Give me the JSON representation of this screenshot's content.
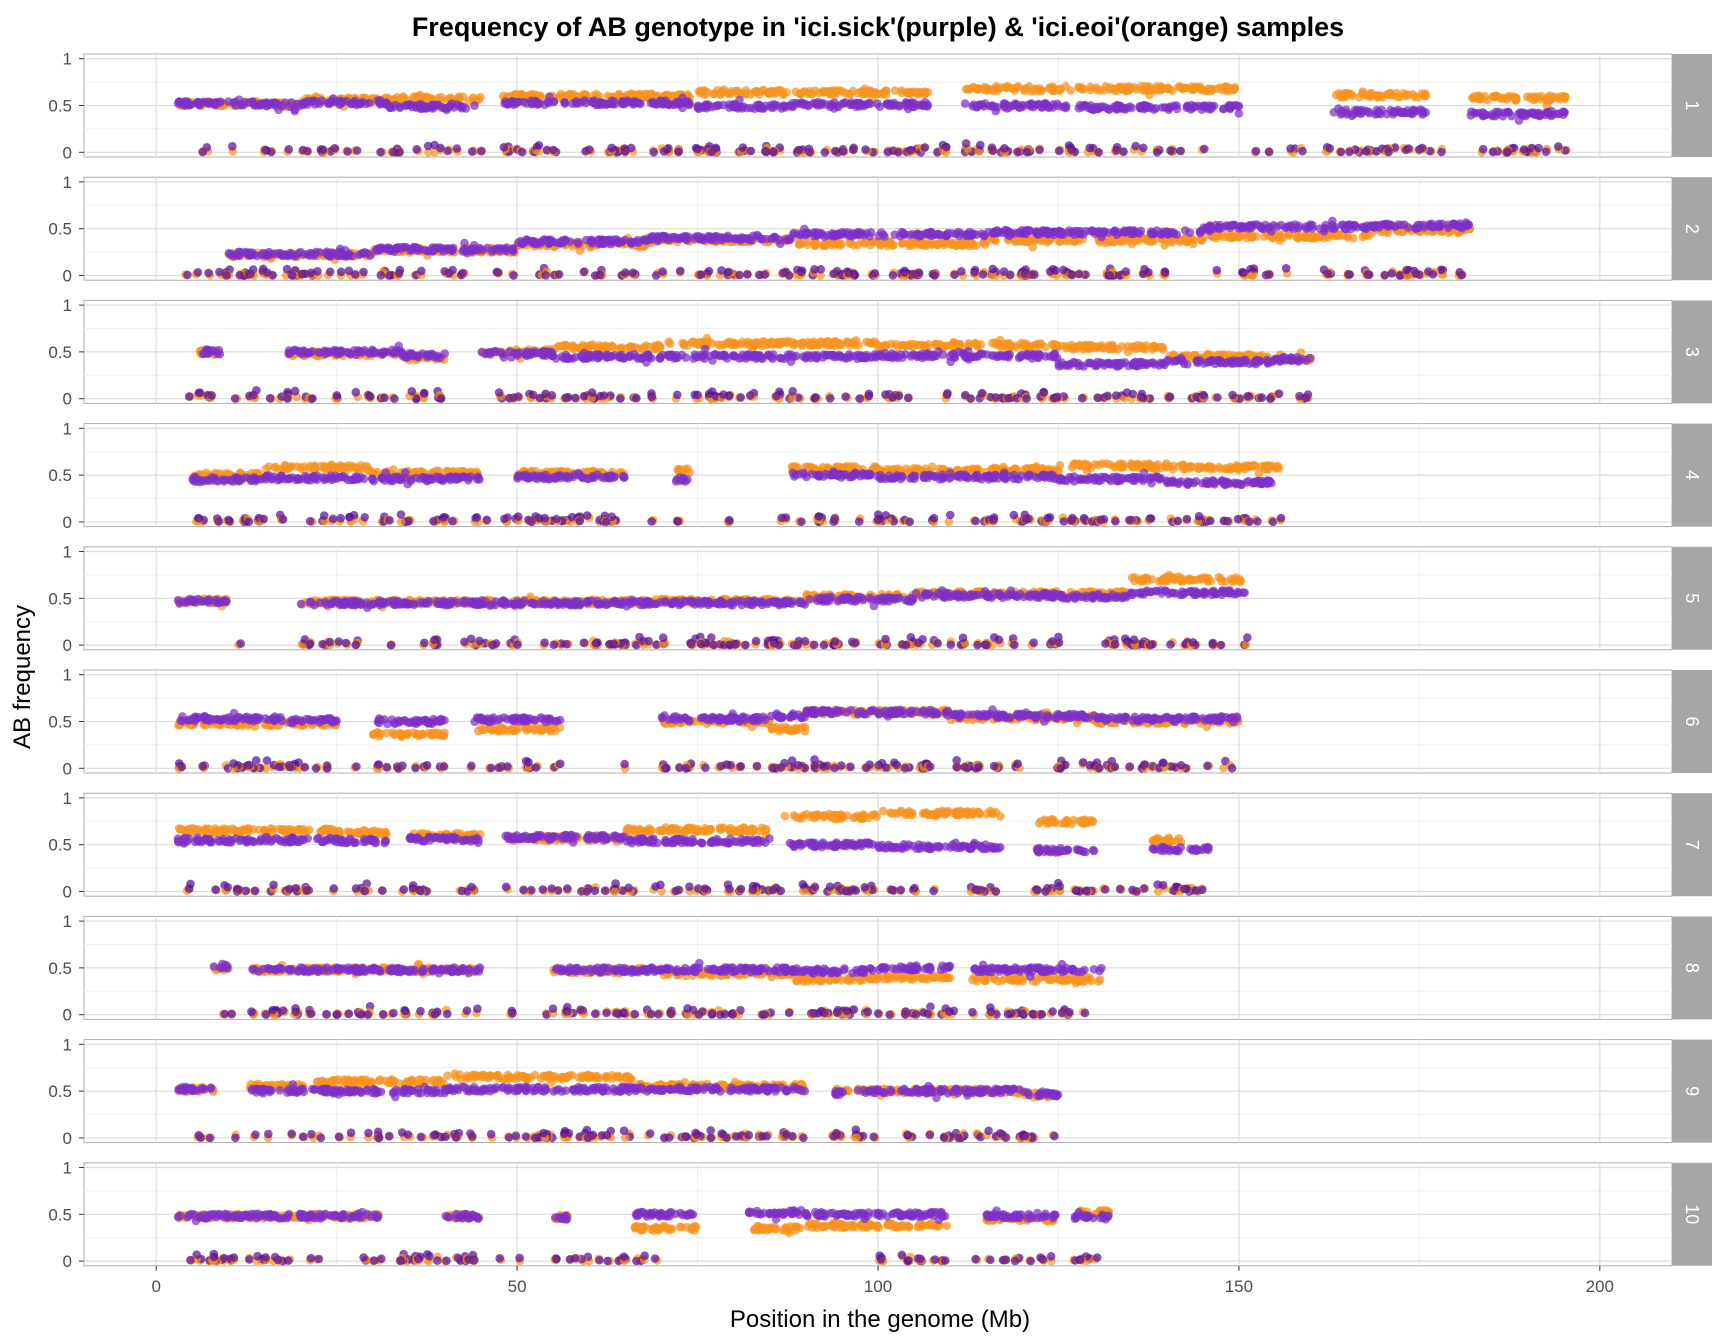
{
  "chart_data": {
    "type": "scatter",
    "title": "Frequency of AB genotype in 'ici.sick'(purple) & 'ici.eoi'(orange) samples",
    "xlabel": "Position in the genome (Mb)",
    "ylabel": "AB frequency",
    "xlim": [
      -10,
      210
    ],
    "ylim": [
      -0.05,
      1.05
    ],
    "x_ticks": [
      0,
      50,
      100,
      150,
      200
    ],
    "y_ticks": [
      0,
      0.5,
      1
    ],
    "y_tick_labels": [
      "0",
      "0.5",
      "1"
    ],
    "grid": true,
    "facet_by": "chromosome",
    "colors": {
      "purple": "#7e2fc7",
      "purple_dark": "#5a0f9a",
      "orange": "#f7931e",
      "strip_bg": "#a6a6a6",
      "grid": "#dcdcdc",
      "panel_border": "#b0b0b0"
    },
    "series": [
      {
        "color": "purple",
        "sample_role": "ici.sick"
      },
      {
        "color": "orange",
        "sample_role": "ici.eoi"
      }
    ],
    "panels": [
      {
        "label": "1",
        "extent": [
          3,
          196
        ],
        "orange_segments": [
          [
            3,
            14,
            0.52
          ],
          [
            14,
            20,
            0.51
          ],
          [
            20,
            32,
            0.56
          ],
          [
            32,
            45,
            0.57
          ],
          [
            48,
            74,
            0.6
          ],
          [
            75,
            88,
            0.64
          ],
          [
            88,
            107,
            0.64
          ],
          [
            112,
            125,
            0.68
          ],
          [
            125,
            150,
            0.68
          ],
          [
            163,
            176,
            0.61
          ],
          [
            182,
            196,
            0.58
          ]
        ],
        "purple_segments": [
          [
            3,
            14,
            0.52
          ],
          [
            14,
            20,
            0.51
          ],
          [
            20,
            32,
            0.53
          ],
          [
            32,
            45,
            0.49
          ],
          [
            48,
            74,
            0.53
          ],
          [
            75,
            88,
            0.49
          ],
          [
            88,
            107,
            0.51
          ],
          [
            112,
            125,
            0.5
          ],
          [
            125,
            150,
            0.48
          ],
          [
            163,
            176,
            0.43
          ],
          [
            182,
            196,
            0.41
          ]
        ],
        "low_segments": [
          [
            5,
            196
          ]
        ],
        "gaps": [
          [
            45,
            48
          ],
          [
            107,
            112
          ],
          [
            150,
            163
          ],
          [
            176,
            182
          ]
        ]
      },
      {
        "label": "2",
        "extent": [
          3,
          182
        ],
        "orange_segments": [
          [
            10,
            30,
            0.22
          ],
          [
            30,
            50,
            0.27
          ],
          [
            50,
            68,
            0.33
          ],
          [
            68,
            88,
            0.38
          ],
          [
            88,
            115,
            0.34
          ],
          [
            115,
            145,
            0.38
          ],
          [
            145,
            168,
            0.42
          ],
          [
            168,
            182,
            0.48
          ]
        ],
        "purple_segments": [
          [
            10,
            30,
            0.23
          ],
          [
            30,
            50,
            0.28
          ],
          [
            50,
            68,
            0.36
          ],
          [
            68,
            88,
            0.4
          ],
          [
            88,
            115,
            0.44
          ],
          [
            115,
            145,
            0.46
          ],
          [
            145,
            168,
            0.52
          ],
          [
            168,
            182,
            0.53
          ]
        ],
        "low_segments": [
          [
            3,
            182
          ]
        ],
        "gaps": [
          [
            140,
            145
          ]
        ]
      },
      {
        "label": "3",
        "extent": [
          4,
          160
        ],
        "orange_segments": [
          [
            6,
            9,
            0.5
          ],
          [
            18,
            34,
            0.48
          ],
          [
            34,
            40,
            0.44
          ],
          [
            45,
            55,
            0.5
          ],
          [
            55,
            70,
            0.55
          ],
          [
            70,
            100,
            0.59
          ],
          [
            100,
            125,
            0.57
          ],
          [
            125,
            140,
            0.55
          ],
          [
            140,
            155,
            0.45
          ],
          [
            155,
            160,
            0.42
          ]
        ],
        "purple_segments": [
          [
            6,
            9,
            0.5
          ],
          [
            18,
            34,
            0.5
          ],
          [
            34,
            40,
            0.46
          ],
          [
            45,
            55,
            0.48
          ],
          [
            55,
            70,
            0.45
          ],
          [
            70,
            100,
            0.45
          ],
          [
            100,
            125,
            0.46
          ],
          [
            125,
            140,
            0.37
          ],
          [
            140,
            155,
            0.39
          ],
          [
            155,
            160,
            0.42
          ]
        ],
        "low_segments": [
          [
            4,
            160
          ]
        ],
        "gaps": [
          [
            9,
            18
          ],
          [
            40,
            45
          ]
        ]
      },
      {
        "label": "4",
        "extent": [
          5,
          156
        ],
        "orange_segments": [
          [
            5,
            15,
            0.5
          ],
          [
            15,
            30,
            0.58
          ],
          [
            30,
            45,
            0.52
          ],
          [
            50,
            65,
            0.52
          ],
          [
            72,
            74,
            0.55
          ],
          [
            88,
            100,
            0.57
          ],
          [
            100,
            125,
            0.55
          ],
          [
            125,
            140,
            0.6
          ],
          [
            140,
            156,
            0.58
          ]
        ],
        "purple_segments": [
          [
            5,
            15,
            0.45
          ],
          [
            15,
            30,
            0.47
          ],
          [
            30,
            45,
            0.46
          ],
          [
            50,
            65,
            0.48
          ],
          [
            72,
            74,
            0.45
          ],
          [
            88,
            100,
            0.5
          ],
          [
            100,
            125,
            0.48
          ],
          [
            125,
            140,
            0.46
          ],
          [
            140,
            156,
            0.42
          ]
        ],
        "low_segments": [
          [
            5,
            156
          ]
        ],
        "gaps": [
          [
            45,
            50
          ],
          [
            65,
            72
          ],
          [
            74,
            88
          ]
        ]
      },
      {
        "label": "5",
        "extent": [
          3,
          151
        ],
        "orange_segments": [
          [
            3,
            10,
            0.47
          ],
          [
            20,
            45,
            0.46
          ],
          [
            45,
            68,
            0.46
          ],
          [
            68,
            90,
            0.47
          ],
          [
            90,
            105,
            0.52
          ],
          [
            105,
            125,
            0.55
          ],
          [
            125,
            135,
            0.55
          ],
          [
            135,
            151,
            0.7
          ]
        ],
        "purple_segments": [
          [
            3,
            10,
            0.47
          ],
          [
            20,
            45,
            0.45
          ],
          [
            45,
            68,
            0.45
          ],
          [
            68,
            90,
            0.45
          ],
          [
            90,
            105,
            0.49
          ],
          [
            105,
            125,
            0.53
          ],
          [
            125,
            135,
            0.52
          ],
          [
            135,
            151,
            0.56
          ]
        ],
        "low_segments": [
          [
            8,
            151
          ]
        ],
        "gaps": [
          [
            10,
            20
          ]
        ]
      },
      {
        "label": "6",
        "extent": [
          3,
          150
        ],
        "orange_segments": [
          [
            3,
            18,
            0.48
          ],
          [
            18,
            25,
            0.48
          ],
          [
            30,
            40,
            0.36
          ],
          [
            44,
            56,
            0.42
          ],
          [
            70,
            85,
            0.5
          ],
          [
            85,
            90,
            0.42
          ],
          [
            90,
            110,
            0.6
          ],
          [
            110,
            130,
            0.54
          ],
          [
            130,
            150,
            0.5
          ]
        ],
        "purple_segments": [
          [
            3,
            18,
            0.53
          ],
          [
            18,
            25,
            0.51
          ],
          [
            30,
            40,
            0.5
          ],
          [
            44,
            56,
            0.52
          ],
          [
            70,
            85,
            0.53
          ],
          [
            85,
            90,
            0.56
          ],
          [
            90,
            110,
            0.6
          ],
          [
            110,
            130,
            0.56
          ],
          [
            130,
            150,
            0.53
          ]
        ],
        "low_segments": [
          [
            3,
            150
          ]
        ],
        "gaps": [
          [
            25,
            30
          ],
          [
            40,
            44
          ],
          [
            56,
            70
          ]
        ]
      },
      {
        "label": "7",
        "extent": [
          3,
          146
        ],
        "orange_segments": [
          [
            3,
            25,
            0.65
          ],
          [
            25,
            32,
            0.63
          ],
          [
            35,
            45,
            0.6
          ],
          [
            48,
            65,
            0.57
          ],
          [
            65,
            85,
            0.66
          ],
          [
            87,
            100,
            0.8
          ],
          [
            100,
            117,
            0.84
          ],
          [
            122,
            130,
            0.75
          ],
          [
            138,
            142,
            0.55
          ]
        ],
        "purple_segments": [
          [
            3,
            25,
            0.55
          ],
          [
            25,
            32,
            0.54
          ],
          [
            35,
            45,
            0.56
          ],
          [
            48,
            65,
            0.58
          ],
          [
            65,
            85,
            0.54
          ],
          [
            87,
            100,
            0.5
          ],
          [
            100,
            117,
            0.48
          ],
          [
            122,
            130,
            0.44
          ],
          [
            138,
            142,
            0.45
          ],
          [
            143,
            146,
            0.45
          ]
        ],
        "low_segments": [
          [
            3,
            145
          ]
        ],
        "gaps": [
          [
            32,
            35
          ],
          [
            45,
            48
          ],
          [
            117,
            122
          ],
          [
            130,
            138
          ]
        ]
      },
      {
        "label": "8",
        "extent": [
          8,
          131
        ],
        "orange_segments": [
          [
            8,
            10,
            0.5
          ],
          [
            13,
            45,
            0.48
          ],
          [
            55,
            70,
            0.47
          ],
          [
            70,
            88,
            0.44
          ],
          [
            88,
            100,
            0.38
          ],
          [
            100,
            110,
            0.4
          ],
          [
            113,
            131,
            0.38
          ]
        ],
        "purple_segments": [
          [
            8,
            10,
            0.52
          ],
          [
            13,
            45,
            0.48
          ],
          [
            55,
            70,
            0.48
          ],
          [
            70,
            88,
            0.48
          ],
          [
            88,
            100,
            0.47
          ],
          [
            100,
            110,
            0.5
          ],
          [
            113,
            131,
            0.48
          ]
        ],
        "low_segments": [
          [
            8,
            130
          ]
        ],
        "gaps": [
          [
            45,
            55
          ],
          [
            110,
            113
          ]
        ]
      },
      {
        "label": "9",
        "extent": [
          3,
          125
        ],
        "orange_segments": [
          [
            3,
            8,
            0.52
          ],
          [
            13,
            22,
            0.55
          ],
          [
            22,
            40,
            0.6
          ],
          [
            40,
            66,
            0.65
          ],
          [
            66,
            90,
            0.55
          ],
          [
            94,
            96,
            0.5
          ],
          [
            97,
            120,
            0.5
          ],
          [
            120,
            125,
            0.46
          ]
        ],
        "purple_segments": [
          [
            3,
            8,
            0.52
          ],
          [
            13,
            22,
            0.5
          ],
          [
            22,
            40,
            0.5
          ],
          [
            40,
            66,
            0.52
          ],
          [
            66,
            90,
            0.52
          ],
          [
            94,
            96,
            0.48
          ],
          [
            97,
            120,
            0.5
          ],
          [
            120,
            125,
            0.47
          ]
        ],
        "low_segments": [
          [
            5,
            125
          ]
        ],
        "gaps": [
          [
            8,
            13
          ],
          [
            90,
            94
          ],
          [
            96,
            97
          ]
        ]
      },
      {
        "label": "10",
        "extent": [
          3,
          132
        ],
        "orange_segments": [
          [
            3,
            30,
            0.48
          ],
          [
            30,
            31,
            0.48
          ],
          [
            40,
            45,
            0.48
          ],
          [
            55,
            57,
            0.47
          ],
          [
            66,
            75,
            0.35
          ],
          [
            82,
            90,
            0.35
          ],
          [
            90,
            110,
            0.38
          ],
          [
            115,
            125,
            0.45
          ],
          [
            127,
            132,
            0.52
          ]
        ],
        "purple_segments": [
          [
            3,
            30,
            0.48
          ],
          [
            30,
            31,
            0.48
          ],
          [
            40,
            45,
            0.48
          ],
          [
            55,
            57,
            0.47
          ],
          [
            66,
            75,
            0.5
          ],
          [
            82,
            90,
            0.52
          ],
          [
            90,
            110,
            0.5
          ],
          [
            115,
            125,
            0.48
          ],
          [
            127,
            132,
            0.47
          ]
        ],
        "low_segments": [
          [
            3,
            70
          ],
          [
            100,
            131
          ]
        ],
        "gaps": [
          [
            45,
            55
          ],
          [
            110,
            115
          ]
        ]
      }
    ]
  }
}
